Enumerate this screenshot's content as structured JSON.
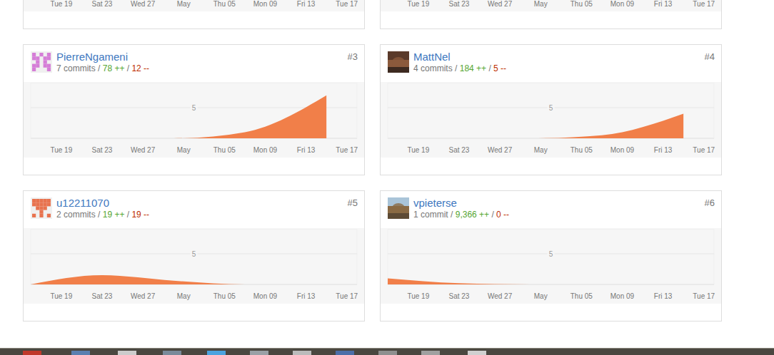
{
  "separator": " / ",
  "cards": [
    {
      "rank": "#3",
      "user": "PierreNgameni",
      "commits": "7 commits",
      "additions": "78 ++",
      "deletions": "12 --"
    },
    {
      "rank": "#4",
      "user": "MattNel",
      "commits": "4 commits",
      "additions": "184 ++",
      "deletions": "5 --"
    },
    {
      "rank": "#5",
      "user": "u12211070",
      "commits": "2 commits",
      "additions": "19 ++",
      "deletions": "19 --"
    },
    {
      "rank": "#6",
      "user": "vpieterse",
      "commits": "1 commit",
      "additions": "9,366 ++",
      "deletions": "0 --"
    }
  ],
  "chart_data": [
    {
      "type": "area",
      "color": "#f17f49",
      "grid": true,
      "x": [
        16,
        23,
        30,
        37,
        45
      ],
      "values": [
        0,
        0,
        0,
        1,
        7
      ],
      "xlim": [
        16,
        48
      ],
      "xticks": [
        {
          "value": 19,
          "label": "Tue 19"
        },
        {
          "value": 23,
          "label": "Sat 23"
        },
        {
          "value": 27,
          "label": "Wed 27"
        },
        {
          "value": 31,
          "label": "May"
        },
        {
          "value": 35,
          "label": "Thu 05"
        },
        {
          "value": 39,
          "label": "Mon 09"
        },
        {
          "value": 43,
          "label": "Fri 13"
        },
        {
          "value": 47,
          "label": "Tue 17"
        }
      ],
      "ylim": [
        0,
        9
      ],
      "yticks": [
        5
      ]
    },
    {
      "type": "area",
      "color": "#f17f49",
      "grid": true,
      "x": [
        16,
        23,
        30,
        37,
        45
      ],
      "values": [
        0,
        0,
        0,
        0.5,
        4
      ],
      "xlim": [
        16,
        48
      ],
      "xticks": [
        {
          "value": 19,
          "label": "Tue 19"
        },
        {
          "value": 23,
          "label": "Sat 23"
        },
        {
          "value": 27,
          "label": "Wed 27"
        },
        {
          "value": 31,
          "label": "May"
        },
        {
          "value": 35,
          "label": "Thu 05"
        },
        {
          "value": 39,
          "label": "Mon 09"
        },
        {
          "value": 43,
          "label": "Fri 13"
        },
        {
          "value": 47,
          "label": "Tue 17"
        }
      ],
      "ylim": [
        0,
        9
      ],
      "yticks": [
        5
      ]
    },
    {
      "type": "area",
      "color": "#f17f49",
      "grid": true,
      "x": [
        16,
        23,
        30,
        37,
        45
      ],
      "values": [
        0,
        1.5,
        0.6,
        0,
        0
      ],
      "xlim": [
        16,
        48
      ],
      "xticks": [
        {
          "value": 19,
          "label": "Tue 19"
        },
        {
          "value": 23,
          "label": "Sat 23"
        },
        {
          "value": 27,
          "label": "Wed 27"
        },
        {
          "value": 31,
          "label": "May"
        },
        {
          "value": 35,
          "label": "Thu 05"
        },
        {
          "value": 39,
          "label": "Mon 09"
        },
        {
          "value": 43,
          "label": "Fri 13"
        },
        {
          "value": 47,
          "label": "Tue 17"
        }
      ],
      "ylim": [
        0,
        9
      ],
      "yticks": [
        5
      ]
    },
    {
      "type": "area",
      "color": "#f17f49",
      "grid": true,
      "x": [
        16,
        23,
        30,
        37,
        45
      ],
      "values": [
        1,
        0.2,
        0,
        0,
        0
      ],
      "xlim": [
        16,
        48
      ],
      "xticks": [
        {
          "value": 19,
          "label": "Tue 19"
        },
        {
          "value": 23,
          "label": "Sat 23"
        },
        {
          "value": 27,
          "label": "Wed 27"
        },
        {
          "value": 31,
          "label": "May"
        },
        {
          "value": 35,
          "label": "Thu 05"
        },
        {
          "value": 39,
          "label": "Mon 09"
        },
        {
          "value": 43,
          "label": "Fri 13"
        },
        {
          "value": 47,
          "label": "Tue 17"
        }
      ],
      "ylim": [
        0,
        9
      ],
      "yticks": [
        5
      ]
    }
  ]
}
